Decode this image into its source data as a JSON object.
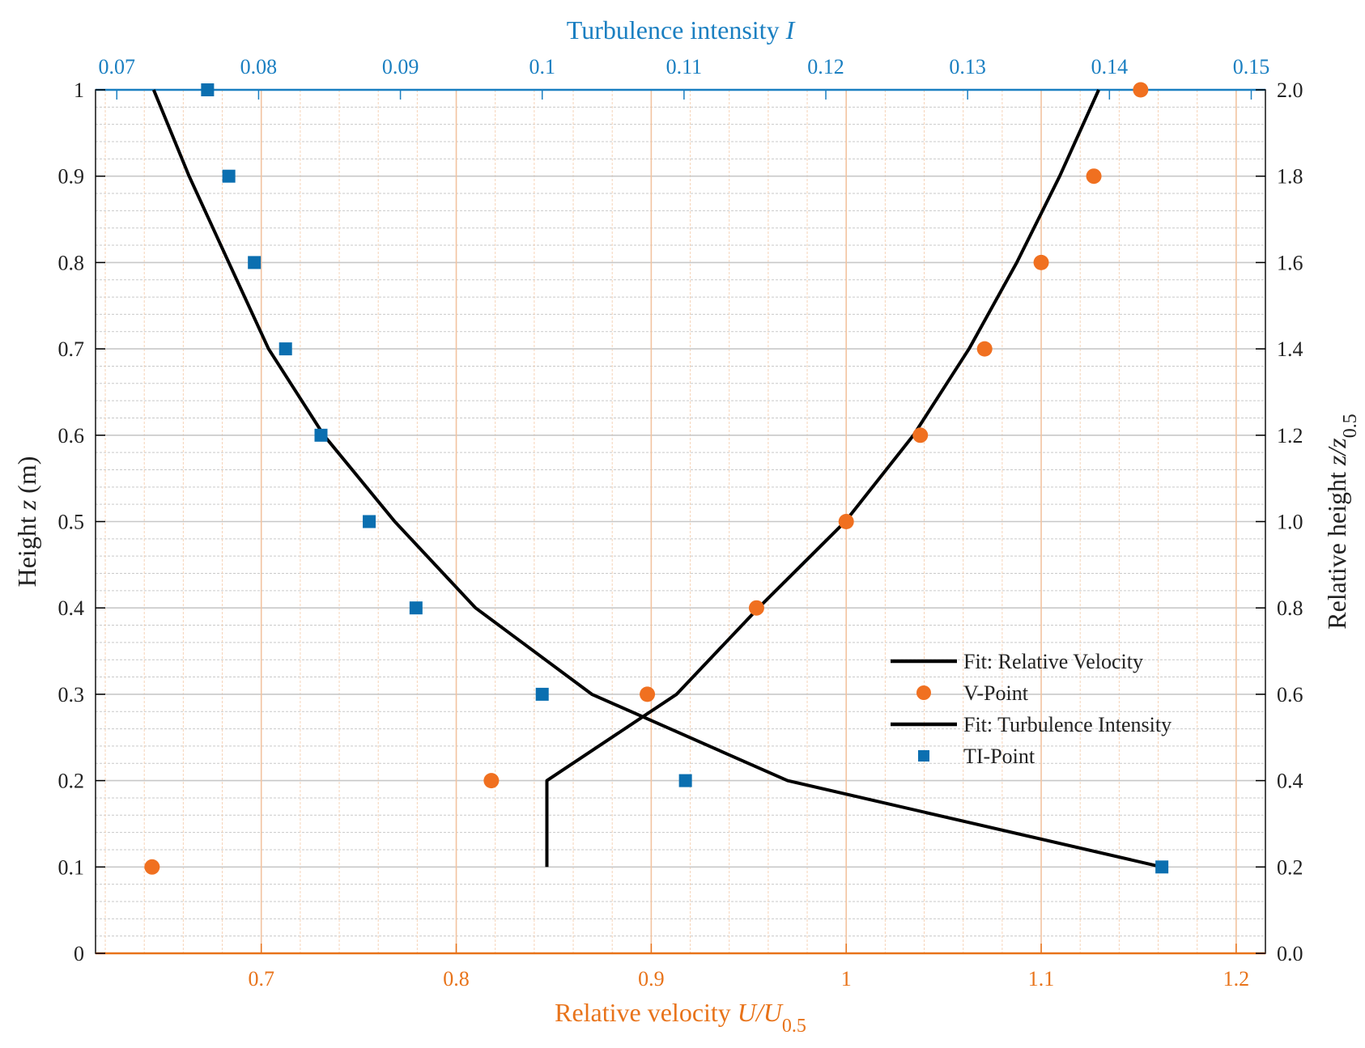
{
  "chart_data": {
    "type": "scatter",
    "axes": {
      "left": {
        "label": "Height z (m)",
        "label_parts": [
          "Height ",
          "z",
          " (m)"
        ],
        "range": [
          0,
          1
        ],
        "ticks": [
          {
            "v": 0,
            "l": "0"
          },
          {
            "v": 0.1,
            "l": "0.1"
          },
          {
            "v": 0.2,
            "l": "0.2"
          },
          {
            "v": 0.3,
            "l": "0.3"
          },
          {
            "v": 0.4,
            "l": "0.4"
          },
          {
            "v": 0.5,
            "l": "0.5"
          },
          {
            "v": 0.6,
            "l": "0.6"
          },
          {
            "v": 0.7,
            "l": "0.7"
          },
          {
            "v": 0.8,
            "l": "0.8"
          },
          {
            "v": 0.9,
            "l": "0.9"
          },
          {
            "v": 1,
            "l": "1"
          }
        ]
      },
      "right": {
        "label": "Relative height z/z0.5",
        "label_parts": [
          "Relative height ",
          "z/z",
          "0.5"
        ],
        "range": [
          0,
          2
        ],
        "ticks": [
          {
            "v": 0,
            "l": "0.0"
          },
          {
            "v": 0.2,
            "l": "0.2"
          },
          {
            "v": 0.4,
            "l": "0.4"
          },
          {
            "v": 0.6,
            "l": "0.6"
          },
          {
            "v": 0.8,
            "l": "0.8"
          },
          {
            "v": 1.0,
            "l": "1.0"
          },
          {
            "v": 1.2,
            "l": "1.2"
          },
          {
            "v": 1.4,
            "l": "1.4"
          },
          {
            "v": 1.6,
            "l": "1.6"
          },
          {
            "v": 1.8,
            "l": "1.8"
          },
          {
            "v": 2.0,
            "l": "2.0"
          }
        ]
      },
      "bottom": {
        "label": "Relative velocity U/U0.5",
        "label_parts": [
          "Relative velocity ",
          "U/U",
          "0.5"
        ],
        "range": [
          0.615,
          1.215
        ],
        "color": "#e8731a",
        "ticks": [
          {
            "v": 0.7,
            "l": "0.7"
          },
          {
            "v": 0.8,
            "l": "0.8"
          },
          {
            "v": 0.9,
            "l": "0.9"
          },
          {
            "v": 1,
            "l": "1"
          },
          {
            "v": 1.1,
            "l": "1.1"
          },
          {
            "v": 1.2,
            "l": "1.2"
          }
        ]
      },
      "top": {
        "label": "Turbulence intensity I",
        "label_parts": [
          "Turbulence intensity ",
          "I"
        ],
        "range": [
          0.0685,
          0.151
        ],
        "color": "#1a7fc1",
        "ticks": [
          {
            "v": 0.07,
            "l": "0.07"
          },
          {
            "v": 0.08,
            "l": "0.08"
          },
          {
            "v": 0.09,
            "l": "0.09"
          },
          {
            "v": 0.1,
            "l": "0.1"
          },
          {
            "v": 0.11,
            "l": "0.11"
          },
          {
            "v": 0.12,
            "l": "0.12"
          },
          {
            "v": 0.13,
            "l": "0.13"
          },
          {
            "v": 0.14,
            "l": "0.14"
          },
          {
            "v": 0.15,
            "l": "0.15"
          }
        ]
      }
    },
    "grid": true,
    "legend_position": "lower-right",
    "series": [
      {
        "name": "Fit: Relative Velocity",
        "kind": "line",
        "axis_x": "bottom",
        "color": "#000000",
        "points": [
          [
            0.8465,
            0.1
          ],
          [
            0.8465,
            0.2
          ],
          [
            0.913,
            0.3
          ],
          [
            0.955,
            0.4
          ],
          [
            0.9995,
            0.5
          ],
          [
            1.0345,
            0.6
          ],
          [
            1.063,
            0.7
          ],
          [
            1.0875,
            0.8
          ],
          [
            1.1095,
            0.9
          ],
          [
            1.1295,
            1.0
          ]
        ]
      },
      {
        "name": "V-Point",
        "kind": "scatter",
        "marker": "circle",
        "axis_x": "bottom",
        "color": "#f07020",
        "points": [
          [
            0.644,
            0.1
          ],
          [
            0.818,
            0.2
          ],
          [
            0.898,
            0.3
          ],
          [
            0.954,
            0.4
          ],
          [
            1.0,
            0.5
          ],
          [
            1.038,
            0.6
          ],
          [
            1.071,
            0.7
          ],
          [
            1.1,
            0.8
          ],
          [
            1.127,
            0.9
          ],
          [
            1.151,
            1.0
          ]
        ]
      },
      {
        "name": "Fit: Turbulence Intensity",
        "kind": "line",
        "axis_x": "top",
        "color": "#000000",
        "points": [
          [
            0.1437,
            0.1
          ],
          [
            0.1173,
            0.2
          ],
          [
            0.1035,
            0.3
          ],
          [
            0.0953,
            0.4
          ],
          [
            0.0896,
            0.5
          ],
          [
            0.0846,
            0.6
          ],
          [
            0.0807,
            0.7
          ],
          [
            0.0779,
            0.8
          ],
          [
            0.0751,
            0.9
          ],
          [
            0.0726,
            1.0
          ]
        ]
      },
      {
        "name": "TI-Point",
        "kind": "scatter",
        "marker": "square",
        "axis_x": "top",
        "color": "#0b6fb0",
        "points": [
          [
            0.1437,
            0.1
          ],
          [
            0.1101,
            0.2
          ],
          [
            0.1,
            0.3
          ],
          [
            0.0911,
            0.4
          ],
          [
            0.0878,
            0.5
          ],
          [
            0.0844,
            0.6
          ],
          [
            0.0819,
            0.7
          ],
          [
            0.0797,
            0.8
          ],
          [
            0.0779,
            0.9
          ],
          [
            0.0764,
            1.0
          ]
        ]
      }
    ],
    "legend": [
      {
        "label": "Fit: Relative Velocity",
        "symbol": "line",
        "color": "#000000"
      },
      {
        "label": "V-Point",
        "symbol": "circle",
        "color": "#f07020"
      },
      {
        "label": "Fit: Turbulence Intensity",
        "symbol": "line",
        "color": "#000000"
      },
      {
        "label": "TI-Point",
        "symbol": "square",
        "color": "#0b6fb0"
      }
    ]
  }
}
